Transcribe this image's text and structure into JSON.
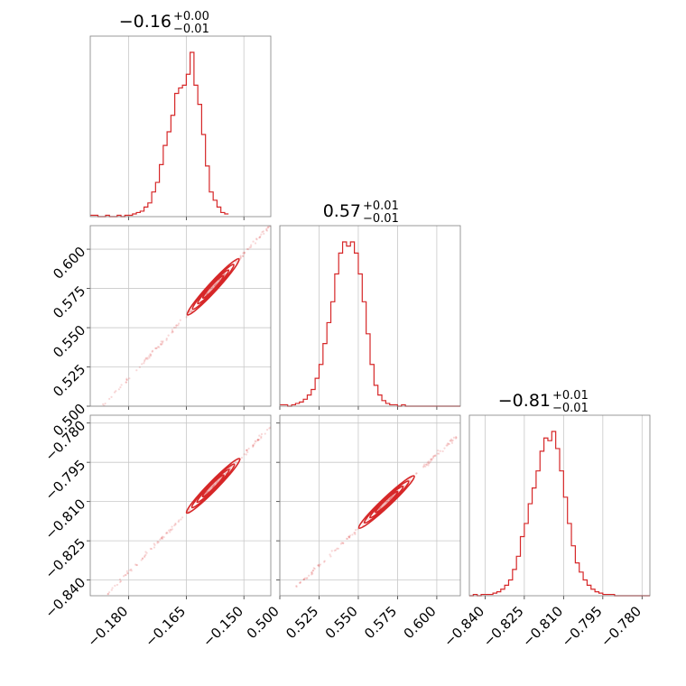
{
  "accent_color": "#d62728",
  "chart_data": {
    "type": "corner",
    "grid": true,
    "parameters": [
      {
        "range": [
          -0.19,
          -0.143
        ],
        "ticks": [
          "−0.180",
          "−0.165",
          "−0.150"
        ],
        "tick_values": [
          -0.18,
          -0.165,
          -0.15
        ]
      },
      {
        "range": [
          0.5,
          0.615
        ],
        "ticks": [
          "0.500",
          "0.525",
          "0.550",
          "0.575",
          "0.600"
        ],
        "tick_values": [
          0.5,
          0.525,
          0.55,
          0.575,
          0.6
        ]
      },
      {
        "range": [
          -0.846,
          -0.777
        ],
        "ticks": [
          "−0.840",
          "−0.825",
          "−0.810",
          "−0.795",
          "−0.780"
        ],
        "tick_values": [
          -0.84,
          -0.825,
          -0.81,
          -0.795,
          -0.78
        ]
      }
    ],
    "titles": [
      {
        "value": "−0.16",
        "upper": "+0.00",
        "lower": "−0.01"
      },
      {
        "value": "0.57",
        "upper": "+0.01",
        "lower": "−0.01"
      },
      {
        "value": "−0.81",
        "upper": "+0.01",
        "lower": "−0.01"
      }
    ],
    "histograms": [
      {
        "parameter": 0,
        "x_start": -0.19,
        "bin_width": 0.001,
        "counts": [
          1,
          1,
          0,
          0,
          1,
          0,
          0,
          1,
          0,
          1,
          1,
          2,
          3,
          4,
          7,
          10,
          18,
          25,
          38,
          52,
          62,
          74,
          90,
          94,
          96,
          104,
          120,
          96,
          82,
          60,
          37,
          18,
          12,
          7,
          3,
          2
        ]
      },
      {
        "parameter": 1,
        "x_start": 0.5,
        "bin_width": 0.0025,
        "counts": [
          1,
          1,
          0,
          1,
          2,
          3,
          5,
          8,
          12,
          20,
          30,
          45,
          60,
          75,
          95,
          110,
          118,
          115,
          118,
          110,
          95,
          75,
          52,
          30,
          15,
          8,
          4,
          2,
          1,
          1,
          0,
          1,
          0,
          0,
          0,
          0,
          0,
          0,
          0,
          0,
          0,
          0,
          0,
          0,
          0,
          0
        ]
      },
      {
        "parameter": 2,
        "x_start": -0.846,
        "bin_width": 0.0015,
        "counts": [
          0,
          1,
          0,
          1,
          1,
          1,
          2,
          3,
          5,
          8,
          12,
          20,
          30,
          45,
          55,
          70,
          82,
          95,
          110,
          120,
          118,
          125,
          112,
          95,
          75,
          55,
          38,
          25,
          18,
          12,
          8,
          5,
          3,
          2,
          1,
          1,
          1,
          0,
          0,
          0,
          0,
          0,
          0,
          0,
          0,
          0
        ]
      }
    ],
    "scatters": [
      {
        "x_param": 0,
        "y_param": 1,
        "relation": {
          "slope": 2.66,
          "intercept": 0.9963
        },
        "x_extent": [
          -0.187,
          -0.143
        ],
        "center_x": -0.158
      },
      {
        "x_param": 0,
        "y_param": 2,
        "relation": {
          "slope": 1.5,
          "intercept": -0.567
        },
        "x_extent": [
          -0.187,
          -0.143
        ],
        "center_x": -0.158
      },
      {
        "x_param": 1,
        "y_param": 2,
        "relation": {
          "slope": 0.565,
          "intercept": -1.1311
        },
        "x_extent": [
          0.51,
          0.615
        ],
        "center_x": 0.568
      }
    ]
  }
}
